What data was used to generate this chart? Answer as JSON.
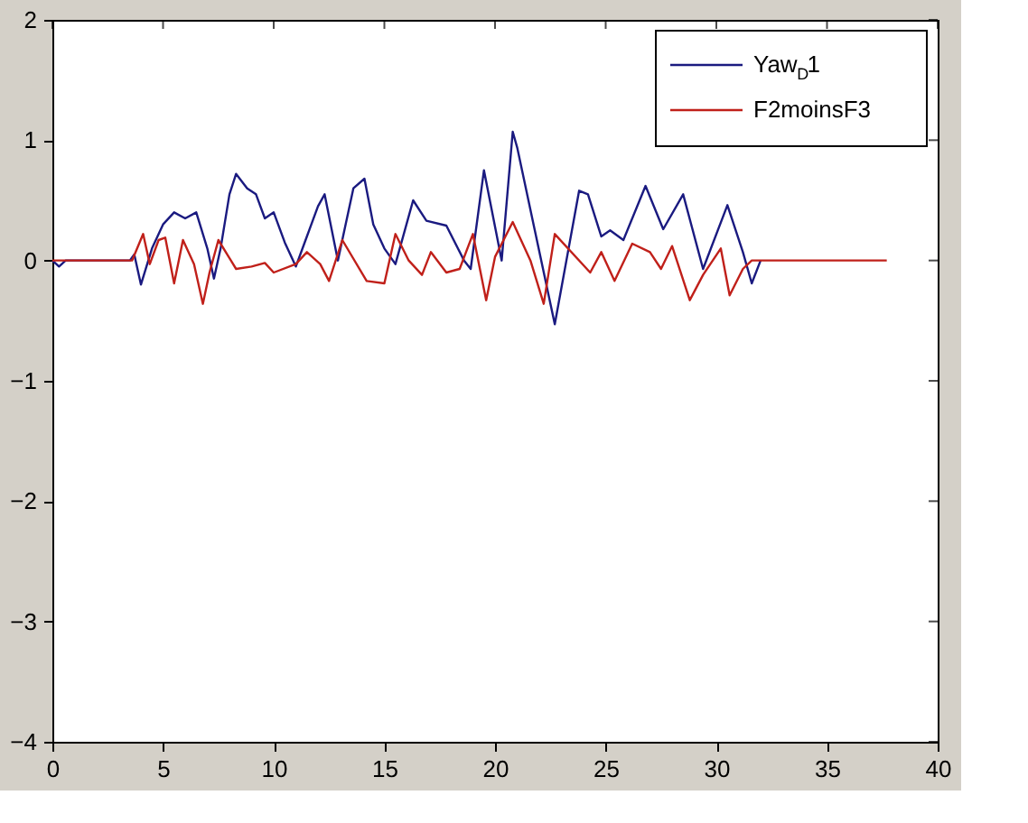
{
  "chart_data": {
    "type": "line",
    "xlim": [
      0,
      40
    ],
    "ylim": [
      -4,
      2
    ],
    "xticks": [
      0,
      5,
      10,
      15,
      20,
      25,
      30,
      35,
      40
    ],
    "yticks": [
      -4,
      -3,
      -2,
      -1,
      0,
      1,
      2
    ],
    "grid": false,
    "legend": "top right",
    "marker": "none",
    "line_style": "solid",
    "series": [
      {
        "name": "Yaw$_{D}$1",
        "color": "#1a1a80",
        "x": [
          0,
          0.3,
          0.6,
          1,
          3.5,
          3.7,
          4,
          4.5,
          5,
          5.5,
          6,
          6.5,
          7,
          7.3,
          7.6,
          8,
          8.3,
          8.8,
          9.2,
          9.6,
          10,
          10.5,
          11,
          11.5,
          12,
          12.3,
          12.9,
          13.6,
          14.1,
          14.5,
          15,
          15.5,
          16.3,
          16.9,
          17.8,
          18.6,
          18.9,
          19.5,
          20.3,
          20.8,
          21,
          22.7,
          23.8,
          24.2,
          24.8,
          25.2,
          25.8,
          26.8,
          27.6,
          28.5,
          29.4,
          30.5,
          31.2,
          31.6,
          32
        ],
        "values": [
          0,
          -0.05,
          0,
          0,
          0,
          0.05,
          -0.2,
          0.1,
          0.3,
          0.4,
          0.35,
          0.4,
          0.1,
          -0.15,
          0.1,
          0.55,
          0.72,
          0.6,
          0.55,
          0.35,
          0.4,
          0.15,
          -0.05,
          0.2,
          0.45,
          0.55,
          0,
          0.6,
          0.68,
          0.3,
          0.1,
          -0.03,
          0.5,
          0.33,
          0.29,
          0,
          -0.07,
          0.75,
          0,
          1.07,
          0.94,
          -0.53,
          0.58,
          0.55,
          0.2,
          0.25,
          0.17,
          0.62,
          0.26,
          0.55,
          -0.07,
          0.46,
          0.07,
          -0.19,
          0
        ]
      },
      {
        "name": "F2moinsF3",
        "color": "#c0201a",
        "x": [
          0,
          3.6,
          4.1,
          4.4,
          4.8,
          5.1,
          5.5,
          5.9,
          6.4,
          6.8,
          7.1,
          7.5,
          8.3,
          9,
          9.6,
          10,
          11,
          11.5,
          12.1,
          12.5,
          13.1,
          14.2,
          15,
          15.5,
          16.1,
          16.7,
          17.1,
          17.8,
          18.4,
          19,
          19.6,
          20,
          20.8,
          21.6,
          22.2,
          22.7,
          24.3,
          24.8,
          25.4,
          26.2,
          27,
          27.5,
          28,
          28.8,
          29.4,
          30.2,
          30.6,
          31.2,
          31.6,
          37.7
        ],
        "values": [
          0,
          0,
          0.22,
          -0.03,
          0.17,
          0.19,
          -0.19,
          0.17,
          -0.03,
          -0.36,
          -0.1,
          0.17,
          -0.07,
          -0.05,
          -0.02,
          -0.1,
          -0.03,
          0.07,
          -0.03,
          -0.17,
          0.17,
          -0.17,
          -0.19,
          0.22,
          0,
          -0.12,
          0.07,
          -0.1,
          -0.07,
          0.22,
          -0.33,
          0.03,
          0.32,
          0,
          -0.36,
          0.22,
          -0.1,
          0.07,
          -0.17,
          0.14,
          0.07,
          -0.07,
          0.12,
          -0.33,
          -0.12,
          0.1,
          -0.29,
          -0.07,
          0,
          0
        ]
      }
    ]
  }
}
